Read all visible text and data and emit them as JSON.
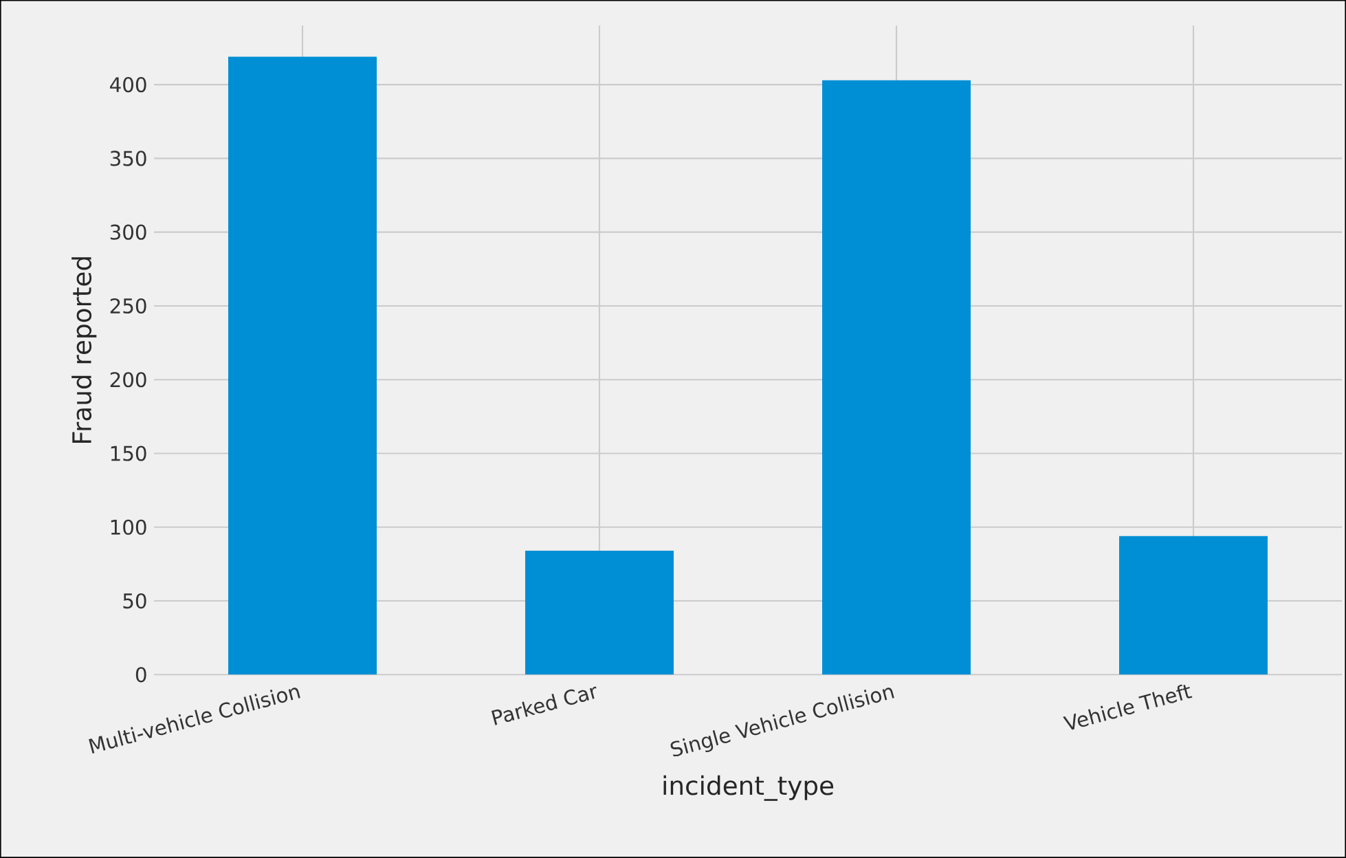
{
  "chart_data": {
    "type": "bar",
    "xlabel": "incident_type",
    "ylabel": "Fraud reported",
    "categories": [
      "Multi-vehicle Collision",
      "Parked Car",
      "Single Vehicle Collision",
      "Vehicle Theft"
    ],
    "values": [
      419,
      84,
      403,
      94
    ],
    "color": "#008fd5",
    "ylim": [
      0,
      440
    ],
    "yticks": [
      0,
      50,
      100,
      150,
      200,
      250,
      300,
      350,
      400
    ],
    "grid": true
  }
}
